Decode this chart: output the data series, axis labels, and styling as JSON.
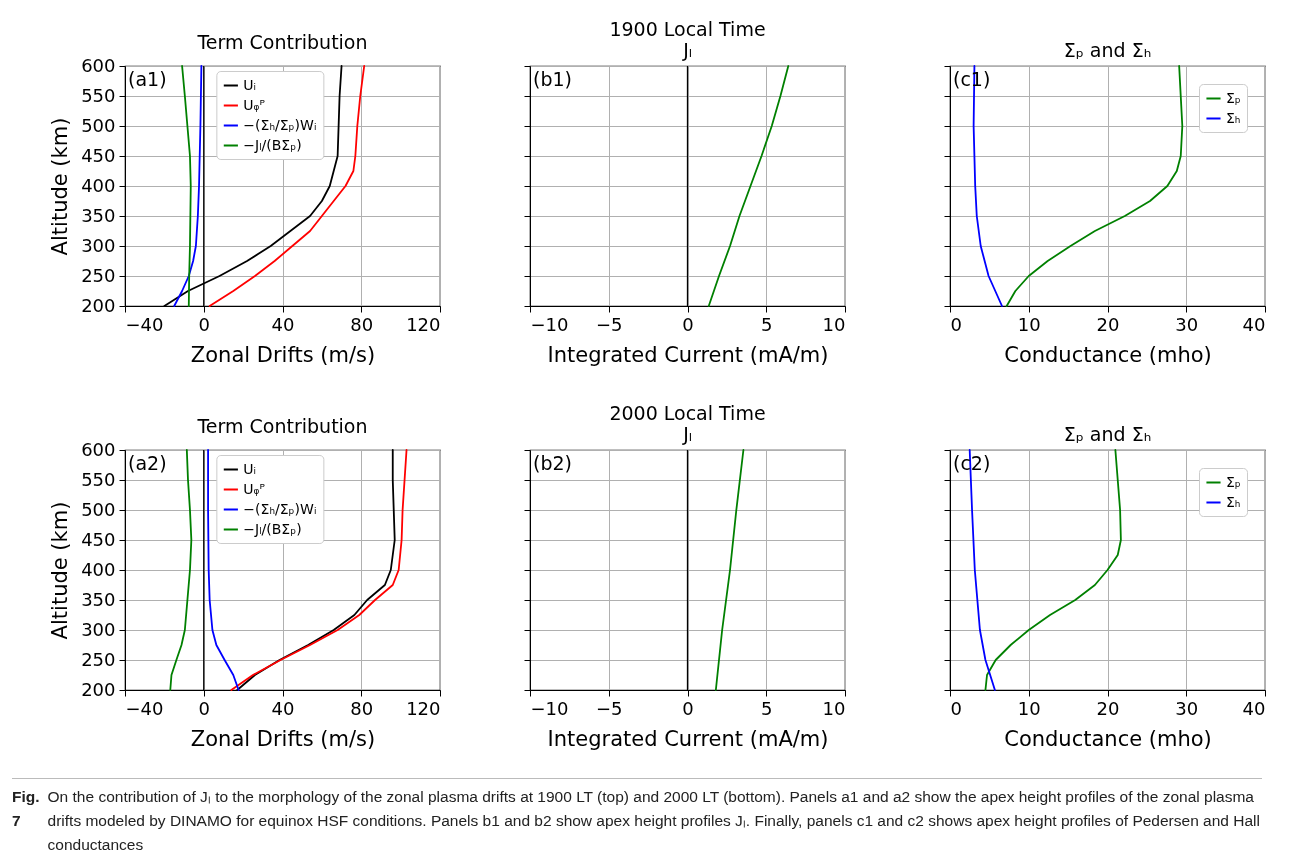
{
  "chart_data": [
    {
      "type": "line",
      "title": "Term Contribution",
      "xlabel": "Zonal Drifts (m/s)",
      "ylabel": "Altitude (km)",
      "xlim": [
        -40,
        120
      ],
      "xticks": [
        -40,
        0,
        40,
        80,
        120
      ],
      "ylim": [
        200,
        600
      ],
      "yticks": [
        200,
        250,
        300,
        350,
        400,
        450,
        500,
        550,
        600
      ],
      "grid": true,
      "legend": "top",
      "annotations": [
        "(a1)"
      ],
      "ref_lines": [
        {
          "axis": "x",
          "value": 0,
          "color": "#000000"
        }
      ],
      "series": [
        {
          "name": "Uᵢ",
          "color": "#000000",
          "x": [
            -20,
            -8,
            8,
            22,
            34,
            44,
            54,
            60,
            64,
            66,
            68,
            68.5,
            69,
            70
          ],
          "values": [
            200,
            225,
            250,
            275,
            300,
            325,
            350,
            375,
            400,
            425,
            450,
            500,
            550,
            600
          ]
        },
        {
          "name": "Uᵩᴾ",
          "color": "#ff0000",
          "x": [
            3,
            15,
            26,
            36,
            45,
            54,
            60,
            66,
            72,
            76,
            77,
            78,
            79.5,
            81.5
          ],
          "values": [
            200,
            225,
            250,
            275,
            300,
            325,
            350,
            375,
            400,
            425,
            450,
            500,
            550,
            600
          ]
        },
        {
          "name": "−(Σₕ/Σₚ)Wᵢ",
          "color": "#0000ff",
          "x": [
            -15,
            -11,
            -7.6,
            -5.4,
            -4,
            -3,
            -2.4,
            -1.7,
            -1.2
          ],
          "values": [
            200,
            225,
            250,
            275,
            300,
            350,
            400,
            500,
            600
          ]
        },
        {
          "name": "−Jₗ/(BΣₚ)",
          "color": "#008000",
          "x": [
            -7.6,
            -7.4,
            -7,
            -6.6,
            -7,
            -8.3,
            -9.6,
            -11
          ],
          "values": [
            200,
            250,
            300,
            400,
            450,
            500,
            550,
            600
          ]
        }
      ]
    },
    {
      "type": "line",
      "title": "1900 Local Time",
      "subtitle": "Jₗ",
      "xlabel": "Integrated Current (mA/m)",
      "xlim": [
        -10,
        10
      ],
      "xticks": [
        -10,
        -5,
        0,
        5,
        10
      ],
      "ylim": [
        200,
        600
      ],
      "yticks": [
        200,
        250,
        300,
        350,
        400,
        450,
        500,
        550,
        600
      ],
      "tick_labels": "x",
      "grid": true,
      "annotations": [
        "(b1)"
      ],
      "ref_lines": [
        {
          "axis": "x",
          "value": 0,
          "color": "#000000"
        }
      ],
      "series": [
        {
          "color": "#008000",
          "x": [
            1.35,
            2.0,
            2.7,
            3.3,
            4.0,
            4.7,
            5.35,
            5.9,
            6.4
          ],
          "values": [
            200,
            250,
            300,
            350,
            400,
            450,
            500,
            550,
            600
          ]
        }
      ]
    },
    {
      "type": "line",
      "title": "Σₚ and Σₕ",
      "xlabel": "Conductance (mho)",
      "xlim": [
        0,
        40
      ],
      "xticks": [
        0,
        10,
        20,
        30,
        40
      ],
      "ylim": [
        200,
        600
      ],
      "yticks": [
        200,
        250,
        300,
        350,
        400,
        450,
        500,
        550,
        600
      ],
      "tick_labels": "x",
      "grid": true,
      "legend": "top right",
      "annotations": [
        "(c1)"
      ],
      "series": [
        {
          "name": "Σₚ",
          "color": "#008000",
          "x": [
            7.2,
            8.3,
            10,
            12.4,
            15.3,
            18.4,
            22.2,
            25.4,
            27.6,
            28.8,
            29.3,
            29.5,
            29.3,
            29.1
          ],
          "values": [
            200,
            225,
            250,
            275,
            300,
            325,
            350,
            375,
            400,
            425,
            450,
            500,
            550,
            600
          ]
        },
        {
          "name": "Σₕ",
          "color": "#0000ff",
          "x": [
            6.6,
            4.9,
            3.9,
            3.4,
            3.2,
            3.0,
            3.1
          ],
          "values": [
            200,
            250,
            300,
            350,
            400,
            500,
            600
          ]
        }
      ]
    },
    {
      "type": "line",
      "title": "Term Contribution",
      "xlabel": "Zonal Drifts (m/s)",
      "ylabel": "Altitude (km)",
      "xlim": [
        -40,
        120
      ],
      "xticks": [
        -40,
        0,
        40,
        80,
        120
      ],
      "ylim": [
        200,
        600
      ],
      "yticks": [
        200,
        250,
        300,
        350,
        400,
        450,
        500,
        550,
        600
      ],
      "grid": true,
      "legend": "top",
      "annotations": [
        "(a2)"
      ],
      "ref_lines": [
        {
          "axis": "x",
          "value": 0,
          "color": "#000000"
        }
      ],
      "series": [
        {
          "name": "Uᵢ",
          "color": "#000000",
          "x": [
            17,
            26,
            38.5,
            53,
            66,
            76.5,
            83,
            92,
            95,
            97,
            96.5,
            96,
            96
          ],
          "values": [
            200,
            225,
            250,
            275,
            300,
            325,
            350,
            375,
            400,
            450,
            500,
            550,
            600
          ]
        },
        {
          "name": "Uᵩᴾ",
          "color": "#ff0000",
          "x": [
            14,
            25,
            39,
            54,
            68,
            79,
            87,
            96,
            99,
            100.5,
            101,
            102,
            103
          ],
          "values": [
            200,
            225,
            250,
            275,
            300,
            325,
            350,
            375,
            400,
            450,
            500,
            550,
            600
          ]
        },
        {
          "name": "−(Σₕ/Σₚ)Wᵢ",
          "color": "#0000ff",
          "x": [
            17.7,
            15,
            10.6,
            6.4,
            4.4,
            3,
            2.5,
            2.2,
            2.2
          ],
          "values": [
            200,
            225,
            250,
            275,
            300,
            350,
            400,
            500,
            600
          ]
        },
        {
          "name": "−Jₗ/(BΣₚ)",
          "color": "#008000",
          "x": [
            -17,
            -16.4,
            -13.9,
            -11.3,
            -9.6,
            -8.3,
            -7,
            -6.3,
            -7,
            -8,
            -8.6
          ],
          "values": [
            200,
            225,
            250,
            275,
            300,
            350,
            400,
            450,
            500,
            550,
            600
          ]
        }
      ]
    },
    {
      "type": "line",
      "title": "2000 Local Time",
      "subtitle": "Jₗ",
      "xlabel": "Integrated Current (mA/m)",
      "xlim": [
        -10,
        10
      ],
      "xticks": [
        -10,
        -5,
        0,
        5,
        10
      ],
      "ylim": [
        200,
        600
      ],
      "yticks": [
        200,
        250,
        300,
        350,
        400,
        450,
        500,
        550,
        600
      ],
      "tick_labels": "x",
      "grid": true,
      "annotations": [
        "(b2)"
      ],
      "ref_lines": [
        {
          "axis": "x",
          "value": 0,
          "color": "#000000"
        }
      ],
      "series": [
        {
          "color": "#008000",
          "x": [
            1.8,
            2.2,
            2.7,
            3.1,
            3.55
          ],
          "values": [
            200,
            300,
            400,
            500,
            600
          ]
        }
      ]
    },
    {
      "type": "line",
      "title": "Σₚ and Σₕ",
      "xlabel": "Conductance (mho)",
      "xlim": [
        0,
        40
      ],
      "xticks": [
        0,
        10,
        20,
        30,
        40
      ],
      "ylim": [
        200,
        600
      ],
      "yticks": [
        200,
        250,
        300,
        350,
        400,
        450,
        500,
        550,
        600
      ],
      "tick_labels": "x",
      "grid": true,
      "legend": "top right",
      "annotations": [
        "(c2)",
        "Fig. 7",
        "On the contribution of Jₗ to the morphology of the zonal plasma drifts at 1900 LT (top) and 2000 LT (bottom). Panels a1 and a2 show the apex height profiles of the zonal plasma drifts modeled by DINAMO for equinox HSF conditions. Panels b1 and b2 show apex height profiles Jₗ. Finally, panels c1 and c2 shows apex height profiles of Pedersen and Hall conductances"
      ],
      "series": [
        {
          "name": "Σₚ",
          "color": "#008000",
          "x": [
            4.5,
            4.7,
            5.8,
            7.7,
            10,
            12.7,
            15.9,
            18.4,
            20,
            21.3,
            21.7,
            21.6,
            21.3,
            21
          ],
          "values": [
            200,
            225,
            250,
            275,
            300,
            325,
            350,
            375,
            400,
            425,
            450,
            500,
            550,
            600
          ]
        },
        {
          "name": "Σₕ",
          "color": "#0000ff",
          "x": [
            5.7,
            4.5,
            3.8,
            3.15,
            2.8,
            2.5
          ],
          "values": [
            200,
            250,
            300,
            400,
            500,
            600
          ]
        }
      ]
    }
  ]
}
